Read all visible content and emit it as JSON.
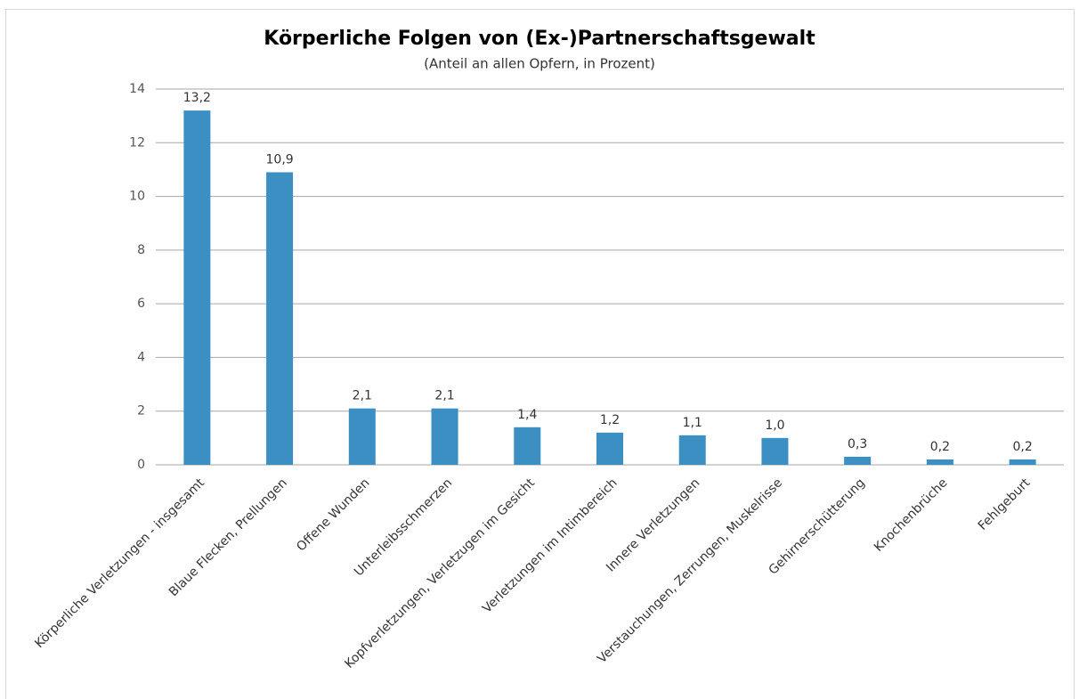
{
  "chart_data": {
    "type": "bar",
    "title": "Körperliche Folgen von (Ex-)Partnerschaftsgewalt",
    "subtitle": "(Anteil an allen Opfern, in Prozent)",
    "categories": [
      "Körperliche Verletzungen - insgesamt",
      "Blaue Flecken, Prellungen",
      "Offene Wunden",
      "Unterleibsschmerzen",
      "Kopfverletzungen, Verletzugen im Gesicht",
      "Verletzungen im Intimbereich",
      "Innere Verletzungen",
      "Verstauchungen, Zerrungen, Muskelrisse",
      "Gehirnerschütterung",
      "Knochenbrüche",
      "Fehlgeburt"
    ],
    "values": [
      13.2,
      10.9,
      2.1,
      2.1,
      1.4,
      1.2,
      1.1,
      1.0,
      0.3,
      0.2,
      0.2
    ],
    "value_labels": [
      "13,2",
      "10,9",
      "2,1",
      "2,1",
      "1,4",
      "1,2",
      "1,1",
      "1,0",
      "0,3",
      "0,2",
      "0,2"
    ],
    "color": "#3b8fc2",
    "ylim": [
      0,
      14
    ],
    "yticks": [
      0,
      2,
      4,
      6,
      8,
      10,
      12,
      14
    ],
    "grid": true
  }
}
